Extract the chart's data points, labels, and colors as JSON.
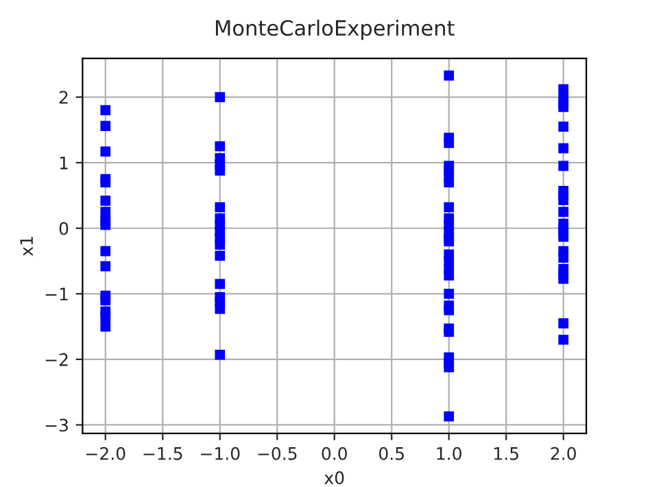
{
  "chart_data": {
    "type": "scatter",
    "title": "MonteCarloExperiment",
    "xlabel": "x0",
    "ylabel": "x1",
    "x": [
      -2,
      -2,
      -2,
      -2,
      -2,
      -2,
      -2,
      -2,
      -2,
      -2,
      -2,
      -2,
      -2,
      -2,
      -2,
      -2,
      -1,
      -1,
      -1,
      -1,
      -1,
      -1,
      -1,
      -1,
      -1,
      -1,
      -1,
      -1,
      -1,
      -1,
      -1,
      -1,
      -1,
      1,
      1,
      1,
      1,
      1,
      1,
      1,
      1,
      1,
      1,
      1,
      1,
      1,
      1,
      1,
      1,
      1,
      1,
      1,
      1,
      1,
      1,
      1,
      1,
      1,
      1,
      2,
      2,
      2,
      2,
      2,
      2,
      2,
      2,
      2,
      2,
      2,
      2,
      2,
      2,
      2,
      2,
      2,
      2,
      2,
      2,
      2,
      2
    ],
    "series": [
      {
        "color": "#0000ff",
        "values": [
          1.8,
          1.56,
          1.17,
          0.75,
          0.7,
          0.42,
          0.25,
          0.12,
          0.05,
          -0.35,
          -0.58,
          -1.03,
          -1.1,
          -1.27,
          -1.35,
          -1.5,
          2.0,
          1.25,
          1.07,
          0.97,
          0.88,
          0.32,
          0.15,
          0.05,
          -0.05,
          -0.15,
          -0.25,
          -0.42,
          -0.85,
          -1.05,
          -1.12,
          -1.23,
          -1.93,
          2.33,
          1.38,
          1.3,
          0.95,
          0.88,
          0.78,
          0.7,
          0.32,
          0.15,
          0.05,
          -0.05,
          -0.15,
          -0.2,
          -0.4,
          -0.5,
          -0.62,
          -0.72,
          -1.0,
          -1.18,
          -1.25,
          -1.53,
          -1.58,
          -1.97,
          -2.05,
          -2.12,
          -2.87,
          2.12,
          1.97,
          1.9,
          1.85,
          1.55,
          1.22,
          0.95,
          0.57,
          0.5,
          0.43,
          0.25,
          0.07,
          0.0,
          -0.07,
          -0.13,
          -0.35,
          -0.45,
          -0.62,
          -0.7,
          -0.77,
          -1.45,
          -1.7
        ]
      }
    ],
    "marker": "square",
    "grid": true,
    "xlim": [
      -2.2,
      2.2
    ],
    "ylim": [
      -3.13,
      2.59
    ],
    "xticks": [
      {
        "value": -2,
        "label": "−2.0"
      },
      {
        "value": -1.5,
        "label": "−1.5"
      },
      {
        "value": -1,
        "label": "−1.0"
      },
      {
        "value": -0.5,
        "label": "−0.5"
      },
      {
        "value": 0,
        "label": "0.0"
      },
      {
        "value": 0.5,
        "label": "0.5"
      },
      {
        "value": 1,
        "label": "1.0"
      },
      {
        "value": 1.5,
        "label": "1.5"
      },
      {
        "value": 2,
        "label": "2.0"
      }
    ],
    "yticks": [
      {
        "value": -3,
        "label": "−3"
      },
      {
        "value": -2,
        "label": "−2"
      },
      {
        "value": -1,
        "label": "−1"
      },
      0,
      1,
      2
    ]
  }
}
